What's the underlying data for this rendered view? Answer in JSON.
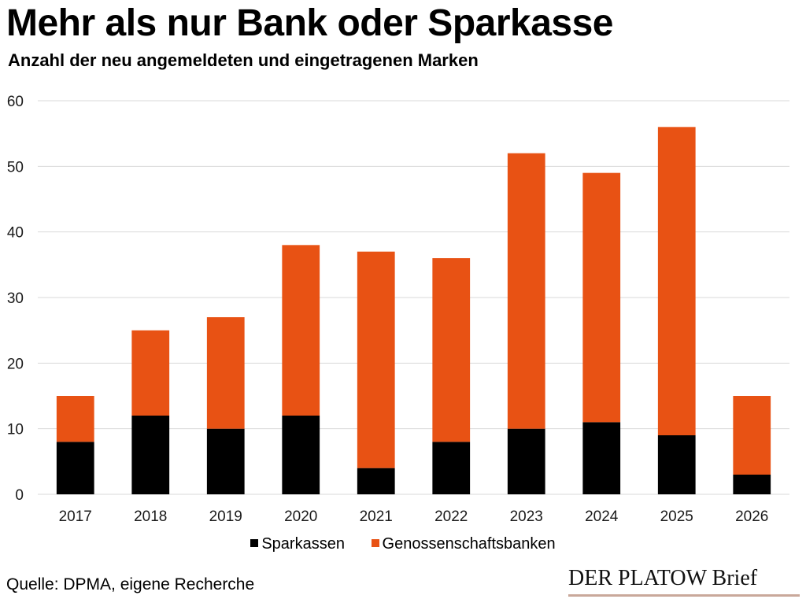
{
  "chart_data": {
    "type": "bar",
    "stacked": true,
    "title": "Mehr als nur Bank oder Sparkasse",
    "subtitle": "Anzahl der neu angemeldeten und eingetragenen Marken",
    "xlabel": "",
    "ylabel": "",
    "ylim": [
      0,
      60
    ],
    "yticks": [
      "0",
      "10",
      "20",
      "30",
      "40",
      "50",
      "60"
    ],
    "ytick_values": [
      0,
      10,
      20,
      30,
      40,
      50,
      60
    ],
    "grid": true,
    "categories": [
      "2017",
      "2018",
      "2019",
      "2020",
      "2021",
      "2022",
      "2023",
      "2024",
      "2025",
      "2026"
    ],
    "series": [
      {
        "name": "Sparkassen",
        "color": "#000000",
        "values": [
          8,
          12,
          10,
          12,
          4,
          8,
          10,
          11,
          9,
          3
        ]
      },
      {
        "name": "Genossenschaftsbanken",
        "color": "#e85214",
        "values": [
          7,
          13,
          17,
          26,
          33,
          28,
          42,
          38,
          47,
          12
        ]
      }
    ],
    "legend_position": "bottom"
  },
  "footer": {
    "source": "Quelle: DPMA, eigene Recherche",
    "logo_text": "DER PLATOW Brief"
  },
  "colors": {
    "gridline": "#d9d9d9",
    "logo_underline": "#c9a89a"
  }
}
